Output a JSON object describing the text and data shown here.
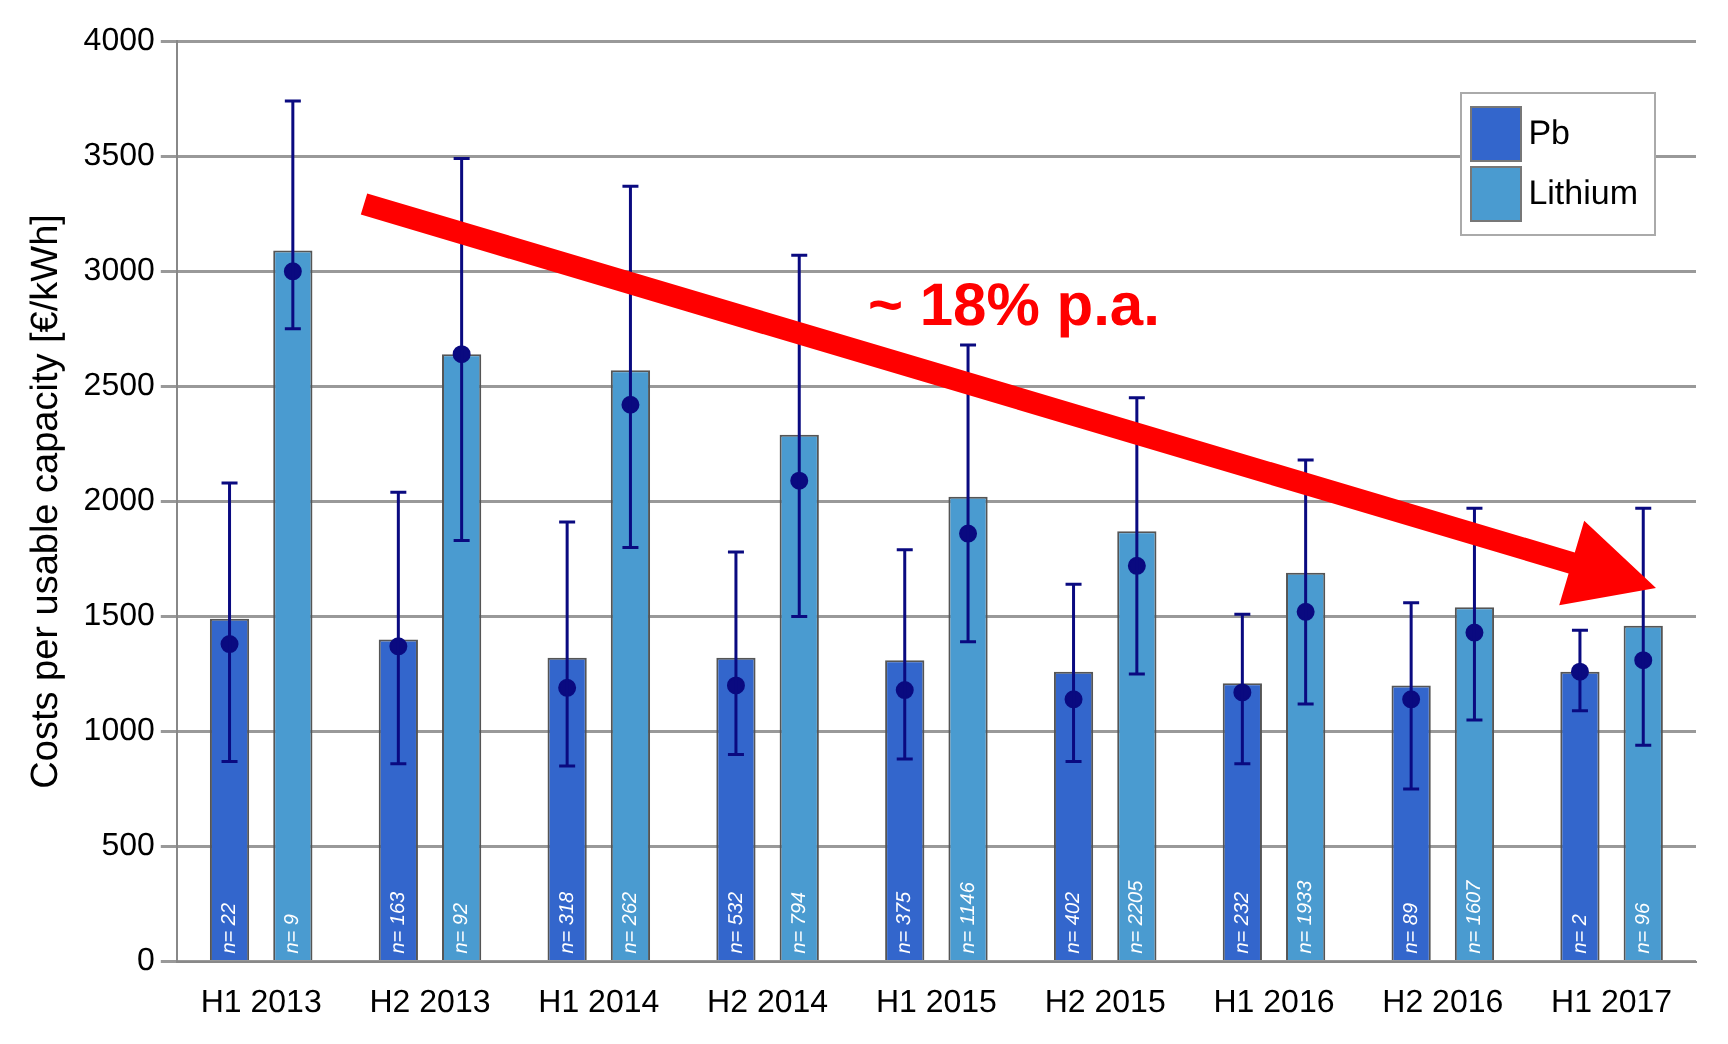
{
  "chart_data": {
    "type": "bar",
    "ylabel": "Costs per usable capacity [€/kWh]",
    "categories": [
      "H1 2013",
      "H2 2013",
      "H1 2014",
      "H2 2014",
      "H1 2015",
      "H2 2015",
      "H1 2016",
      "H2 2016",
      "H1 2017"
    ],
    "series": [
      {
        "name": "Pb",
        "color": "#3366cc",
        "values": [
          1490,
          1400,
          1320,
          1320,
          1310,
          1260,
          1210,
          1200,
          1260
        ]
      },
      {
        "name": "Lithium",
        "color": "#4a9bd0",
        "values": [
          3090,
          2640,
          2570,
          2290,
          2020,
          1870,
          1690,
          1540,
          1460
        ]
      },
      {
        "type": "scatter",
        "color": "#0a0a80",
        "x": [
          "H1 2013",
          "H2 2013",
          "H1 2014",
          "H2 2014",
          "H1 2015",
          "H2 2015",
          "H1 2016",
          "H2 2016",
          "H1 2017"
        ],
        "values": [
          1380,
          1370,
          1190,
          1200,
          1180,
          1140,
          1170,
          1140,
          1260
        ],
        "errors": [
          [
            870,
            2080
          ],
          [
            860,
            2040
          ],
          [
            850,
            1910
          ],
          [
            900,
            1780
          ],
          [
            880,
            1790
          ],
          [
            870,
            1640
          ],
          [
            860,
            1510
          ],
          [
            750,
            1560
          ],
          [
            1090,
            1440
          ]
        ]
      },
      {
        "type": "scatter",
        "color": "#0a0a80",
        "x": [
          "H1 2013",
          "H2 2013",
          "H1 2014",
          "H2 2014",
          "H1 2015",
          "H2 2015",
          "H1 2016",
          "H2 2016",
          "H1 2017"
        ],
        "values": [
          3000,
          2640,
          2420,
          2090,
          1860,
          1720,
          1520,
          1430,
          1310
        ],
        "errors": [
          [
            2750,
            3740
          ],
          [
            1830,
            3490
          ],
          [
            1800,
            3370
          ],
          [
            1500,
            3070
          ],
          [
            1390,
            2680
          ],
          [
            1250,
            2450
          ],
          [
            1120,
            2180
          ],
          [
            1050,
            1970
          ],
          [
            940,
            1970
          ]
        ]
      }
    ],
    "ylim": [
      0,
      4000
    ],
    "yticks": [
      0,
      500,
      1000,
      1500,
      2000,
      2500,
      3000,
      3500,
      4000
    ],
    "grid": "y",
    "legend": "top right",
    "marker": "circle",
    "annotations": [
      "~ 18% p.a.",
      "n= 22",
      "n= 9",
      "n= 163",
      "n= 92",
      "n= 318",
      "n= 262",
      "n= 532",
      "n= 794",
      "n= 375",
      "n= 1146",
      "n= 402",
      "n= 2205",
      "n= 232",
      "n= 1933",
      "n= 89",
      "n= 1607",
      "n= 2",
      "n= 96"
    ]
  }
}
